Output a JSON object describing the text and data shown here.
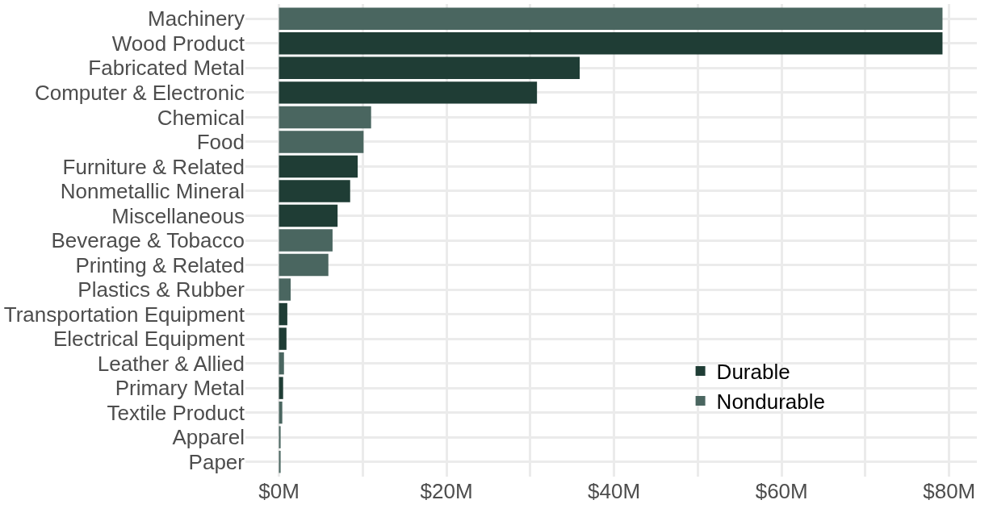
{
  "chart_data": {
    "type": "bar",
    "orientation": "horizontal",
    "categories": [
      "Machinery",
      "Wood Product",
      "Fabricated Metal",
      "Computer & Electronic",
      "Chemical",
      "Food",
      "Furniture & Related",
      "Nonmetallic Mineral",
      "Miscellaneous",
      "Beverage & Tobacco",
      "Printing & Related",
      "Plastics & Rubber",
      "Transportation Equipment",
      "Electrical Equipment",
      "Leather & Allied",
      "Primary Metal",
      "Textile Product",
      "Apparel",
      "Paper"
    ],
    "series": [
      {
        "name": "Durable",
        "color": "#1f3d35",
        "values": [
          null,
          79.2,
          35.9,
          30.8,
          null,
          null,
          9.4,
          8.5,
          7.0,
          null,
          null,
          null,
          1.0,
          0.9,
          null,
          0.5,
          null,
          null,
          null
        ]
      },
      {
        "name": "Nondurable",
        "color": "#4a6660",
        "values": [
          79.2,
          null,
          null,
          null,
          11.0,
          10.1,
          null,
          null,
          null,
          6.4,
          5.9,
          1.4,
          null,
          null,
          0.6,
          null,
          0.4,
          0.2,
          0.2
        ]
      }
    ],
    "xlim": [
      -4,
      83.3
    ],
    "xticks": [
      {
        "value": 0,
        "label": "$0M"
      },
      {
        "value": 10,
        "label": null
      },
      {
        "value": 20,
        "label": "$20M"
      },
      {
        "value": 30,
        "label": null
      },
      {
        "value": 40,
        "label": "$40M"
      },
      {
        "value": 50,
        "label": null
      },
      {
        "value": 60,
        "label": "$60M"
      },
      {
        "value": 70,
        "label": null
      },
      {
        "value": 80,
        "label": "$80M"
      }
    ],
    "grid": true,
    "legend": "bottom right"
  }
}
